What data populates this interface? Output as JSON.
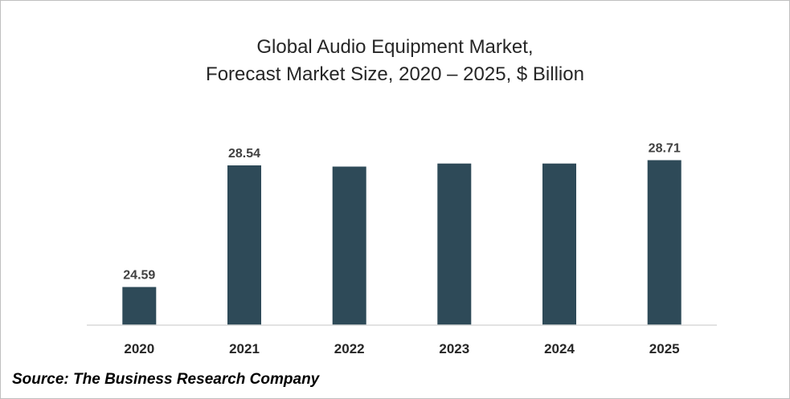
{
  "chart_data": {
    "type": "bar",
    "title": "Global Audio Equipment Market,",
    "subtitle": "Forecast Market Size, 2020 – 2025, $ Billion",
    "categories": [
      "2020",
      "2021",
      "2022",
      "2023",
      "2024",
      "2025"
    ],
    "values": [
      24.59,
      28.54,
      28.5,
      28.6,
      28.6,
      28.71
    ],
    "data_labels": [
      "24.59",
      "28.54",
      "",
      "",
      "",
      "28.71"
    ],
    "xlabel": "",
    "ylabel": "",
    "ylim": [
      23.35,
      30.0
    ],
    "grid": false,
    "legend": "none",
    "bar_color": "#2e4a58"
  },
  "source_text": "Source: The Business Research Company"
}
